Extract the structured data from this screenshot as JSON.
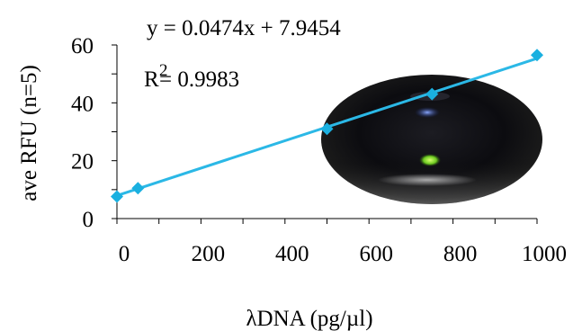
{
  "chart_data": {
    "type": "scatter",
    "xlabel": "λDNA (pg/µl)",
    "ylabel": "ave RFU (n=5)",
    "xlim": [
      0,
      1000
    ],
    "ylim": [
      0,
      60
    ],
    "x_ticks": [
      0,
      200,
      400,
      600,
      800,
      1000
    ],
    "y_ticks": [
      0,
      20,
      40,
      60
    ],
    "grid": false,
    "series": [
      {
        "x": [
          0,
          50,
          500,
          750,
          1000
        ],
        "y": [
          7.6,
          10.5,
          31,
          43,
          56.5
        ],
        "marker": "diamond",
        "color": "#1ab0e0"
      }
    ],
    "trendline": {
      "type": "linear",
      "slope": 0.0474,
      "intercept": 7.9454,
      "color": "#2bb8e6"
    },
    "annotations": {
      "equation": "y = 0.0474x + 7.9454",
      "r2_base": "R",
      "r2_sup": "2",
      "r2_value": "= 0.9983"
    },
    "inset_image": {
      "description_icon": "fluorescence-droplet-photo",
      "accent_color": "#7bd22a"
    }
  }
}
